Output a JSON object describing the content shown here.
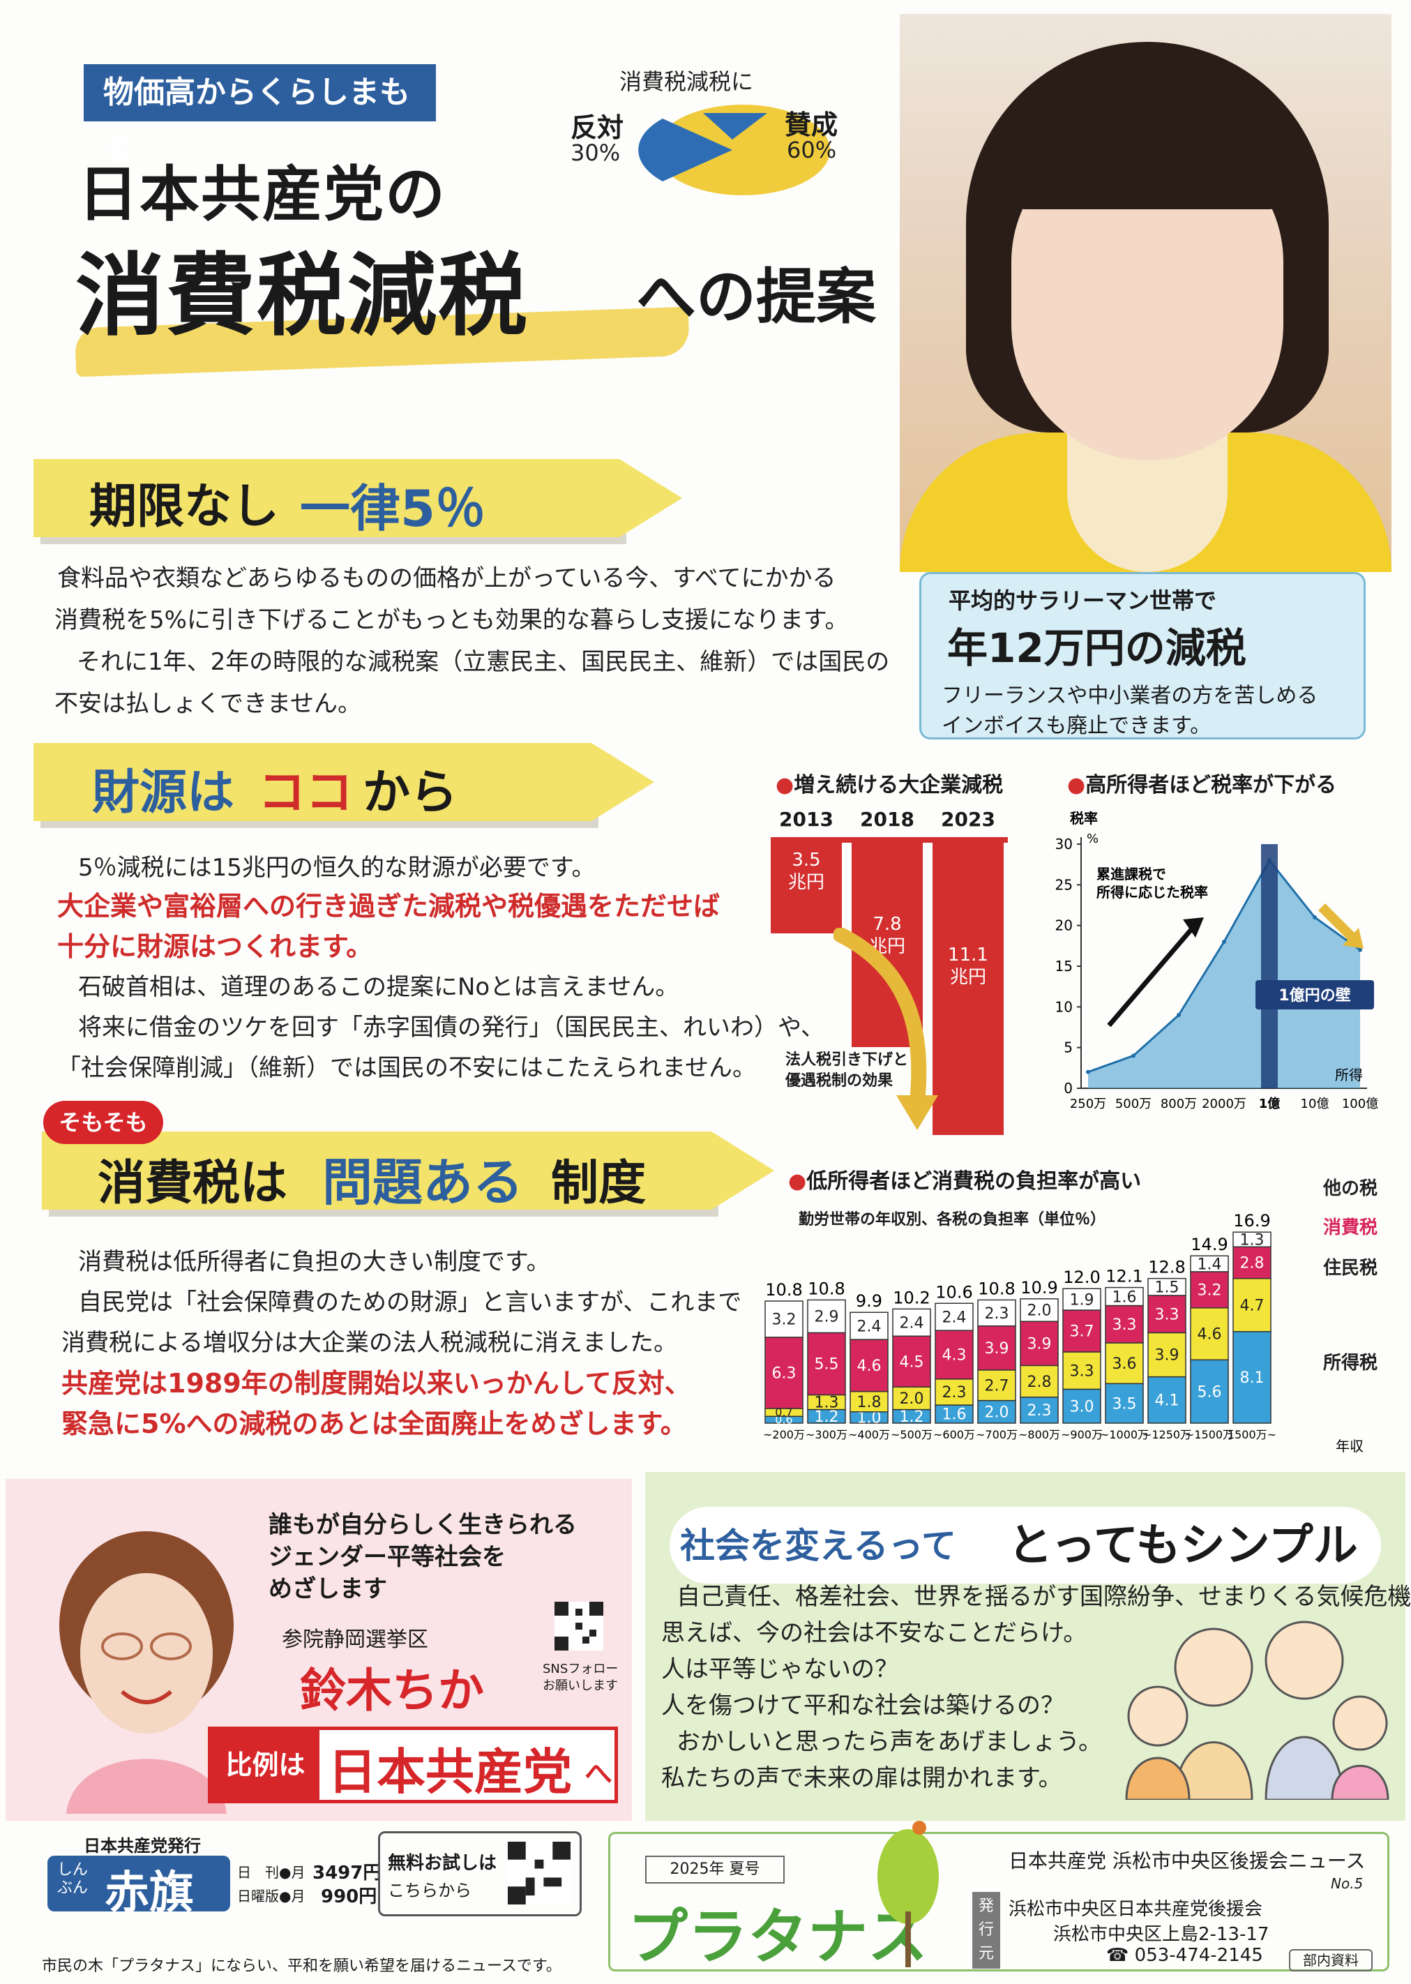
{
  "header": {
    "tag": "物価高からくらしまもる",
    "title_line1": "日本共産党の",
    "title_line2_big": "消費税減税",
    "title_line2_small": "への提案"
  },
  "poll_pie": {
    "title": "消費税減税に",
    "against_label": "反対",
    "against_pct": "30%",
    "for_label": "賛成",
    "for_pct": "60%",
    "against_value": 30,
    "for_value": 60,
    "colors": {
      "against": "#2e6db4",
      "for": "#f0cc3c"
    }
  },
  "tipbox": {
    "line1": "平均的サラリーマン世帯で",
    "line2": "年12万円の減税",
    "line3": "フリーランスや中小業者の方を苦しめる",
    "line4": "インボイスも廃止できます。"
  },
  "section1": {
    "heading_a": "期限なし",
    "heading_b": "一律5％",
    "p1": "食料品や衣類などあらゆるものの価格が上がっている今、すべてにかかる",
    "p2": "消費税を5%に引き下げることがもっとも効果的な暮らし支援になります。",
    "p3": "それに1年、2年の時限的な減税案（立憲民主、国民民主、維新）では国民の",
    "p4": "不安は払しょくできません。"
  },
  "section2": {
    "heading_a": "財源は",
    "heading_b": "ココ",
    "heading_c": "から",
    "p1": "5％減税には15兆円の恒久的な財源が必要です。",
    "red1": "大企業や富裕層への行き過ぎた減税や税優遇をただせば",
    "red2": "十分に財源はつくれます。",
    "p2": "石破首相は、道理のあるこの提案にNoとは言えません。",
    "p3": "将来に借金のツケを回す「赤字国債の発行」（国民民主、れいわ）や、",
    "p4": "「社会保障削減」（維新）では国民の不安にはこたえられません。"
  },
  "section3": {
    "badge": "そもそも",
    "heading_a": "消費税は",
    "heading_b": "問題ある",
    "heading_c": "制度",
    "p1": "消費税は低所得者に負担の大きい制度です。",
    "p2": "自民党は「社会保障費のための財源」と言いますが、これまで",
    "p3": "消費税による増収分は大企業の法人税減税に消えました。",
    "red1": "共産党は1989年の制度開始以来いっかんして反対、",
    "red2": "緊急に5%への減税のあとは全面廃止をめざします。"
  },
  "chart_data": [
    {
      "type": "bar",
      "title": "増え続ける大企業減税",
      "categories": [
        "2013",
        "2018",
        "2023"
      ],
      "values": [
        3.5,
        7.8,
        11.1
      ],
      "value_labels": [
        "3.5",
        "7.8",
        "11.1"
      ],
      "unit_label": "兆円",
      "annotation": [
        "法人税引き下げと",
        "優遇税制の効果"
      ],
      "color": "#d32f2f"
    },
    {
      "type": "area",
      "title": "高所得者ほど税率が下がる",
      "ylabel": "税率",
      "yunit": "%",
      "y_ticks": [
        0,
        5,
        10,
        15,
        20,
        25,
        30
      ],
      "ylim": [
        0,
        30
      ],
      "x_ticks": [
        "250万",
        "500万",
        "800万",
        "2000万",
        "1億",
        "10億",
        "100億"
      ],
      "xlabel": "所得",
      "points": [
        {
          "x": "250万",
          "y": 2
        },
        {
          "x": "500万",
          "y": 4
        },
        {
          "x": "800万",
          "y": 9
        },
        {
          "x": "2000万",
          "y": 18
        },
        {
          "x": "1億",
          "y": 28
        },
        {
          "x": "10億",
          "y": 21
        },
        {
          "x": "100億",
          "y": 17
        }
      ],
      "annotations": [
        "累進課税で",
        "所得に応じた税率",
        "1億円の壁"
      ],
      "color": "#5aa9d6"
    },
    {
      "type": "bar",
      "stacked": true,
      "title": "低所得者ほど消費税の負担率が高い",
      "subtitle": "勤労世帯の年収別、各税の負担率（単位％）",
      "categories": [
        "~200万",
        "~300万",
        "~400万",
        "~500万",
        "~600万",
        "~700万",
        "~800万",
        "~900万",
        "~1000万",
        "~1250万",
        "~1500万",
        "1500万~"
      ],
      "xlabel": "年収",
      "totals": [
        "10.8",
        "10.8",
        "9.9",
        "10.2",
        "10.6",
        "10.8",
        "10.9",
        "12.0",
        "12.1",
        "12.8",
        "14.9",
        "16.9"
      ],
      "series": [
        {
          "name": "所得税",
          "color": "#3aa0d8",
          "values": [
            0.6,
            1.2,
            1.0,
            1.2,
            1.6,
            2.0,
            2.3,
            3.0,
            3.5,
            4.1,
            5.6,
            8.1
          ]
        },
        {
          "name": "住民税",
          "color": "#f3e43a",
          "values": [
            0.7,
            1.3,
            1.8,
            2.0,
            2.3,
            2.7,
            2.8,
            3.3,
            3.6,
            3.9,
            4.6,
            4.7
          ]
        },
        {
          "name": "消費税",
          "color": "#d7265e",
          "values": [
            6.3,
            5.5,
            4.6,
            4.5,
            4.3,
            3.9,
            3.9,
            3.7,
            3.3,
            3.3,
            3.2,
            2.8
          ]
        },
        {
          "name": "他の税",
          "color": "#ffffff",
          "values": [
            3.2,
            2.9,
            2.4,
            2.4,
            2.4,
            2.3,
            2.0,
            1.9,
            1.6,
            1.5,
            1.4,
            1.3
          ]
        }
      ],
      "labels": {
        "所得税": [
          "0.6",
          "1.2",
          "1.0",
          "1.2",
          "1.6",
          "2.0",
          "2.3",
          "3.0",
          "3.5",
          "4.1",
          "5.6",
          "8.1"
        ],
        "住民税": [
          "0.7",
          "1.3",
          "1.8",
          "2.0",
          "2.3",
          "2.7",
          "2.8",
          "3.3",
          "3.6",
          "3.9",
          "4.6",
          "4.7"
        ],
        "消費税": [
          "6.3",
          "5.5",
          "4.6",
          "4.5",
          "4.3",
          "3.9",
          "3.9",
          "3.7",
          "3.3",
          "3.3",
          "3.2",
          "2.8"
        ],
        "他の税": [
          "3.2",
          "2.9",
          "2.4",
          "2.4",
          "2.4",
          "2.3",
          "2.0",
          "1.9",
          "1.6",
          "1.5",
          "1.4",
          "1.3"
        ]
      }
    }
  ],
  "candidate": {
    "slogan1": "誰もが自分らしく生きられる",
    "slogan2": "ジェンダー平等社会を",
    "slogan3": "めざします",
    "district": "参院静岡選挙区",
    "name": "鈴木ちか",
    "sns1": "SNSフォロー",
    "sns2": "お願いします",
    "proportional_a": "比例は",
    "proportional_b": "日本共産党",
    "proportional_c": "へ"
  },
  "society": {
    "heading_a": "社会を変えるって",
    "heading_b": "とってもシンプル",
    "l1": "自己責任、格差社会、世界を揺るがす国際紛争、せまりくる気候危機",
    "l2": "思えば、今の社会は不安なことだらけ。",
    "l3": "人は平等じゃないの？",
    "l4": "人を傷つけて平和な社会は築けるの？",
    "l5": "おかしいと思ったら声をあげましょう。",
    "l6": "私たちの声で未来の扉は開かれます。"
  },
  "footer": {
    "publisher": "日本共産党発行",
    "paper_small": "しんぶん",
    "paper_big": "赤旗",
    "daily": "日　刊●月",
    "daily_price": "3497円",
    "sunday": "日曜版●月",
    "sunday_price": "990円",
    "trial1": "無料お試しは",
    "trial2": "こちらから",
    "issue": "2025年 夏号",
    "brand": "プラタナス",
    "org_title": "日本共産党 浜松市中央区後援会ニュース",
    "no": "No.5",
    "issuer_label": "発行元",
    "org1": "浜松市中央区日本共産党後援会",
    "addr": "浜松市中央区上島2-13-17",
    "tel": "☎ 053-474-2145",
    "internal": "部内資料",
    "motto": "市民の木「プラタナス」にならい、平和を願い希望を届けるニュースです。"
  }
}
